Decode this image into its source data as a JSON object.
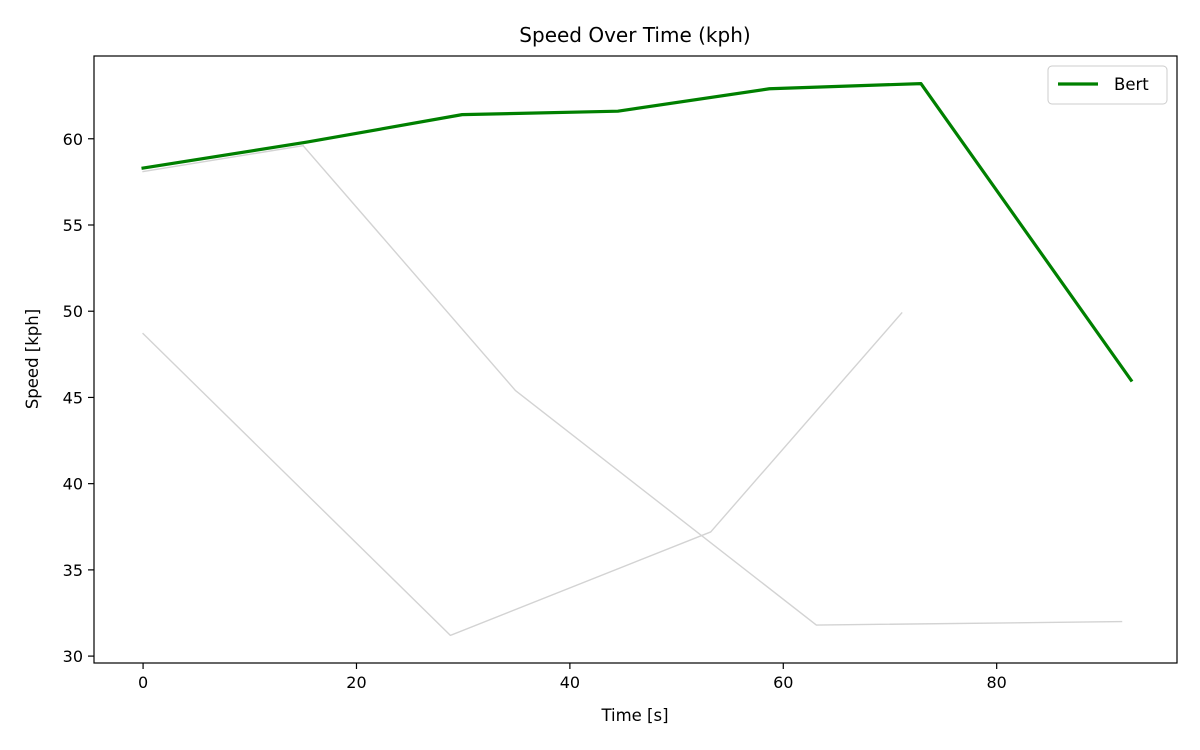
{
  "chart_data": {
    "type": "line",
    "title": "Speed Over Time (kph)",
    "xlabel": "Time [s]",
    "ylabel": "Speed [kph]",
    "xlim": [
      -4.6,
      96.9
    ],
    "ylim": [
      29.6,
      64.8
    ],
    "xticks": [
      0,
      20,
      40,
      60,
      80
    ],
    "yticks": [
      30,
      35,
      40,
      45,
      50,
      55,
      60
    ],
    "grid": false,
    "legend_position": "top-right",
    "series": [
      {
        "name": "Bert",
        "color": "#008000",
        "highlight": true,
        "x": [
          0,
          15.3,
          29.9,
          44.5,
          58.7,
          72.9,
          92.6
        ],
        "y": [
          58.3,
          59.8,
          61.4,
          61.6,
          62.9,
          63.2,
          46.0
        ]
      },
      {
        "color": "#d3d3d3",
        "highlight": false,
        "x": [
          0,
          15.0
        ],
        "y": [
          58.1,
          59.6
        ]
      },
      {
        "color": "#d3d3d3",
        "highlight": false,
        "x": [
          15.0,
          34.9,
          63.1,
          91.7
        ],
        "y": [
          59.6,
          45.4,
          31.8,
          32.0
        ]
      },
      {
        "color": "#d3d3d3",
        "highlight": false,
        "x": [
          0,
          28.8,
          53.2,
          71.1
        ],
        "y": [
          48.7,
          31.2,
          37.2,
          49.9
        ]
      }
    ]
  }
}
